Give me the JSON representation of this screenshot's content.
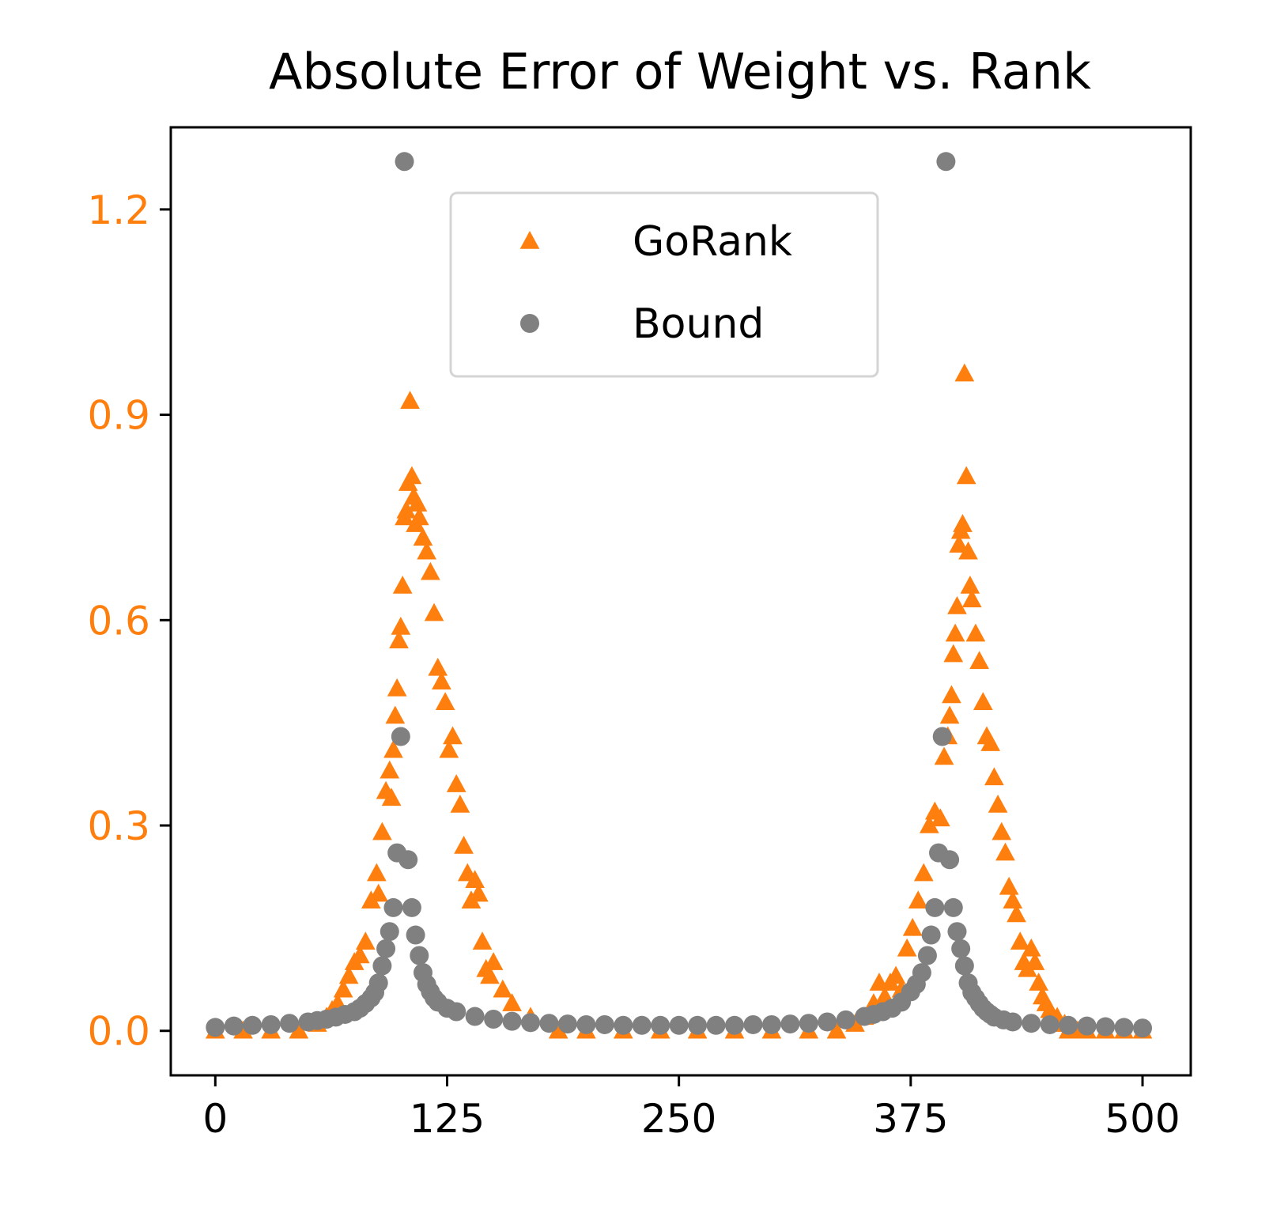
{
  "chart_data": {
    "type": "scatter",
    "title": "Absolute Error of Weight vs. Rank",
    "xlabel": "",
    "ylabel": "",
    "xlim": [
      -24,
      526
    ],
    "ylim": [
      -0.065,
      1.32
    ],
    "x_ticks": [
      0,
      125,
      250,
      375,
      500
    ],
    "y_ticks": [
      0.0,
      0.3,
      0.6,
      0.9,
      1.2
    ],
    "x_tick_labels": [
      "0",
      "125",
      "250",
      "375",
      "500"
    ],
    "y_tick_labels": [
      "0.0",
      "0.3",
      "0.6",
      "0.9",
      "1.2"
    ],
    "y_tick_color": "#ff7f0e",
    "grid": false,
    "legend_position": "upper-center",
    "series": [
      {
        "name": "GoRank",
        "marker": "triangle",
        "color": "#ff7f0e",
        "x": [
          0,
          15,
          30,
          45,
          55,
          60,
          63,
          66,
          69,
          72,
          75,
          78,
          81,
          84,
          87,
          88,
          90,
          92,
          94,
          95,
          96,
          97,
          98,
          99,
          100,
          101,
          102,
          103,
          104,
          105,
          106,
          107,
          108,
          109,
          110,
          112,
          114,
          116,
          118,
          120,
          122,
          124,
          126,
          128,
          130,
          132,
          134,
          136,
          138,
          140,
          142,
          144,
          146,
          148,
          150,
          155,
          160,
          170,
          185,
          200,
          220,
          240,
          260,
          280,
          300,
          320,
          335,
          345,
          350,
          355,
          358,
          361,
          364,
          367,
          370,
          373,
          376,
          379,
          382,
          385,
          388,
          391,
          393,
          395,
          396,
          397,
          398,
          399,
          400,
          401,
          402,
          403,
          404,
          405,
          406,
          407,
          408,
          410,
          412,
          414,
          416,
          418,
          420,
          422,
          424,
          426,
          428,
          430,
          432,
          434,
          436,
          438,
          440,
          442,
          444,
          446,
          448,
          450,
          452,
          454,
          456,
          458,
          460,
          465,
          470,
          480,
          490,
          500
        ],
        "y": [
          0.0,
          0.0,
          0.0,
          0.0,
          0.01,
          0.02,
          0.03,
          0.04,
          0.06,
          0.08,
          0.1,
          0.11,
          0.13,
          0.19,
          0.23,
          0.2,
          0.29,
          0.35,
          0.38,
          0.34,
          0.41,
          0.46,
          0.5,
          0.57,
          0.59,
          0.65,
          0.75,
          0.76,
          0.8,
          0.92,
          0.81,
          0.78,
          0.74,
          0.77,
          0.75,
          0.72,
          0.7,
          0.67,
          0.61,
          0.53,
          0.51,
          0.48,
          0.41,
          0.43,
          0.36,
          0.33,
          0.27,
          0.23,
          0.19,
          0.22,
          0.2,
          0.13,
          0.09,
          0.08,
          0.1,
          0.06,
          0.04,
          0.02,
          0.0,
          0.0,
          0.0,
          0.0,
          0.0,
          0.0,
          0.0,
          0.0,
          0.0,
          0.01,
          0.02,
          0.04,
          0.07,
          0.05,
          0.07,
          0.08,
          0.06,
          0.12,
          0.15,
          0.19,
          0.23,
          0.3,
          0.32,
          0.31,
          0.4,
          0.43,
          0.46,
          0.49,
          0.55,
          0.58,
          0.62,
          0.71,
          0.73,
          0.74,
          0.96,
          0.81,
          0.7,
          0.65,
          0.63,
          0.58,
          0.54,
          0.48,
          0.43,
          0.42,
          0.37,
          0.33,
          0.29,
          0.26,
          0.21,
          0.19,
          0.17,
          0.13,
          0.1,
          0.09,
          0.12,
          0.1,
          0.07,
          0.05,
          0.04,
          0.03,
          0.02,
          0.02,
          0.01,
          0.01,
          0.0,
          0.0,
          0.0,
          0.0,
          0.0,
          0.0
        ]
      },
      {
        "name": "Bound",
        "marker": "circle",
        "color": "#808080",
        "x": [
          0,
          10,
          20,
          30,
          40,
          50,
          55,
          60,
          65,
          70,
          75,
          78,
          81,
          84,
          86,
          88,
          90,
          92,
          94,
          96,
          98,
          100,
          102,
          104,
          106,
          108,
          110,
          112,
          114,
          116,
          118,
          120,
          125,
          130,
          140,
          150,
          160,
          170,
          180,
          190,
          200,
          210,
          220,
          230,
          240,
          250,
          260,
          270,
          280,
          290,
          300,
          310,
          320,
          330,
          340,
          350,
          355,
          360,
          365,
          370,
          375,
          378,
          381,
          384,
          386,
          388,
          390,
          392,
          394,
          396,
          398,
          400,
          402,
          404,
          406,
          408,
          410,
          412,
          414,
          416,
          418,
          420,
          425,
          430,
          440,
          450,
          460,
          470,
          480,
          490,
          500
        ],
        "y": [
          0.005,
          0.007,
          0.008,
          0.009,
          0.011,
          0.013,
          0.015,
          0.017,
          0.02,
          0.024,
          0.028,
          0.033,
          0.04,
          0.048,
          0.056,
          0.07,
          0.095,
          0.12,
          0.145,
          0.18,
          0.26,
          0.43,
          1.27,
          0.25,
          0.18,
          0.14,
          0.11,
          0.085,
          0.068,
          0.057,
          0.048,
          0.042,
          0.033,
          0.028,
          0.021,
          0.017,
          0.014,
          0.012,
          0.011,
          0.01,
          0.009,
          0.009,
          0.008,
          0.008,
          0.008,
          0.008,
          0.008,
          0.008,
          0.008,
          0.009,
          0.009,
          0.01,
          0.011,
          0.013,
          0.016,
          0.021,
          0.024,
          0.028,
          0.033,
          0.042,
          0.057,
          0.068,
          0.085,
          0.11,
          0.14,
          0.18,
          0.26,
          0.43,
          1.27,
          0.25,
          0.18,
          0.145,
          0.12,
          0.095,
          0.07,
          0.056,
          0.048,
          0.04,
          0.033,
          0.028,
          0.024,
          0.02,
          0.016,
          0.013,
          0.011,
          0.009,
          0.008,
          0.007,
          0.006,
          0.005,
          0.004
        ]
      }
    ]
  }
}
